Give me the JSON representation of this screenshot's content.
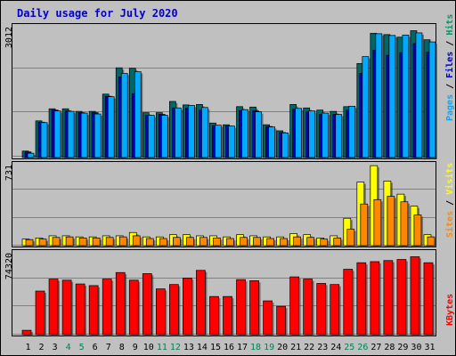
{
  "chart_data": [
    {
      "type": "bar",
      "title": "Daily usage for July 2020",
      "ylabel_parts": [
        {
          "text": "Pages",
          "color": "#00aaff"
        },
        {
          "text": " / ",
          "color": "#000000"
        },
        {
          "text": "Files",
          "color": "#0000cc"
        },
        {
          "text": " / ",
          "color": "#000000"
        },
        {
          "text": "Hits",
          "color": "#009966"
        }
      ],
      "y_max_label": "3012",
      "ylim": [
        0,
        3012
      ],
      "grid": true,
      "categories": [
        "1",
        "2",
        "3",
        "4",
        "5",
        "6",
        "7",
        "8",
        "9",
        "10",
        "11",
        "12",
        "13",
        "14",
        "15",
        "16",
        "17",
        "18",
        "19",
        "20",
        "21",
        "22",
        "23",
        "24",
        "25",
        "26",
        "27",
        "28",
        "29",
        "30",
        "31"
      ],
      "weekend_days": [
        "4",
        "5",
        "11",
        "12",
        "18",
        "19",
        "25",
        "26"
      ],
      "series": [
        {
          "name": "Hits",
          "color": "#006666",
          "values": [
            150,
            850,
            1130,
            1130,
            1070,
            1070,
            1470,
            2080,
            2070,
            1040,
            1040,
            1300,
            1220,
            1230,
            800,
            760,
            1180,
            1170,
            760,
            620,
            1230,
            1150,
            1100,
            1070,
            1180,
            2180,
            2880,
            2850,
            2790,
            2940,
            2730
          ]
        },
        {
          "name": "Files",
          "color": "#0000cc",
          "values": [
            130,
            820,
            1100,
            1080,
            1040,
            1040,
            1420,
            1870,
            1480,
            980,
            1000,
            1150,
            1140,
            1100,
            740,
            730,
            1090,
            1080,
            720,
            580,
            1120,
            1060,
            1000,
            1000,
            1100,
            1950,
            2490,
            2370,
            2430,
            2640,
            2440
          ]
        },
        {
          "name": "Pages",
          "color": "#00aaff",
          "values": [
            100,
            810,
            1080,
            1070,
            1030,
            1010,
            1410,
            1950,
            1990,
            980,
            980,
            1150,
            1210,
            1160,
            750,
            730,
            1110,
            1060,
            710,
            570,
            1140,
            1080,
            1030,
            1000,
            1190,
            2340,
            2870,
            2830,
            2840,
            2890,
            2680
          ]
        }
      ]
    },
    {
      "type": "bar",
      "ylabel_parts": [
        {
          "text": "Sites",
          "color": "#ff8800"
        },
        {
          "text": " / ",
          "color": "#000000"
        },
        {
          "text": "Visits",
          "color": "#ffff00"
        }
      ],
      "y_max_label": "731",
      "ylim": [
        0,
        731
      ],
      "grid": true,
      "series": [
        {
          "name": "Visits",
          "color": "#ffff00",
          "values": [
            60,
            70,
            90,
            90,
            80,
            80,
            90,
            90,
            120,
            80,
            80,
            100,
            100,
            90,
            90,
            80,
            100,
            90,
            80,
            80,
            110,
            100,
            70,
            90,
            250,
            580,
            730,
            590,
            470,
            360,
            100
          ]
        },
        {
          "name": "Sites",
          "color": "#ff8800",
          "values": [
            55,
            60,
            75,
            80,
            70,
            70,
            75,
            80,
            90,
            65,
            65,
            75,
            75,
            75,
            70,
            65,
            75,
            75,
            65,
            65,
            80,
            75,
            60,
            70,
            150,
            380,
            420,
            450,
            400,
            280,
            80
          ]
        }
      ]
    },
    {
      "type": "bar",
      "ylabel_parts": [
        {
          "text": "KBytes",
          "color": "#ff0000"
        }
      ],
      "y_max_label": "74320",
      "ylim": [
        0,
        74320
      ],
      "grid": true,
      "series": [
        {
          "name": "KBytes",
          "color": "#ff0000",
          "values": [
            4000,
            40000,
            51000,
            50000,
            46500,
            45000,
            51000,
            57000,
            50000,
            56000,
            42000,
            46000,
            52000,
            59000,
            35000,
            35000,
            50500,
            49500,
            31000,
            26000,
            53000,
            51000,
            47000,
            46000,
            60000,
            66000,
            67000,
            68000,
            69000,
            71500,
            66000
          ]
        }
      ]
    }
  ]
}
